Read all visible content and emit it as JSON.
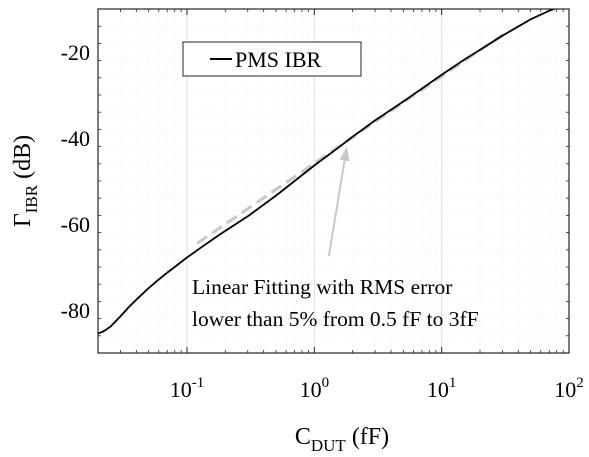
{
  "chart_data": {
    "type": "line",
    "title": "",
    "xlabel": {
      "main": "C",
      "sub": "DUT",
      "unit": " (fF)"
    },
    "ylabel": {
      "main": "Γ",
      "sub": "IBR",
      "unit": " (dB)"
    },
    "xscale": "log",
    "xlim": [
      0.02,
      100
    ],
    "ylim": [
      -90,
      -10
    ],
    "grid": true,
    "legend_position": "top-left",
    "x_ticks": [
      {
        "value": 0.1,
        "base": "10",
        "exp": "-1"
      },
      {
        "value": 1,
        "base": "10",
        "exp": "0"
      },
      {
        "value": 10,
        "base": "10",
        "exp": "1"
      },
      {
        "value": 100,
        "base": "10",
        "exp": "2"
      }
    ],
    "y_ticks": [
      {
        "value": -20,
        "label": "-20"
      },
      {
        "value": -40,
        "label": "-40"
      },
      {
        "value": -60,
        "label": "-60"
      },
      {
        "value": -80,
        "label": "-80"
      }
    ],
    "series": [
      {
        "name": "PMS IBR",
        "color": "#000000",
        "style": "solid",
        "points": [
          [
            0.02,
            -85.5
          ],
          [
            0.022,
            -85.0
          ],
          [
            0.025,
            -83.9
          ],
          [
            0.03,
            -81.5
          ],
          [
            0.035,
            -79.3
          ],
          [
            0.04,
            -77.6
          ],
          [
            0.05,
            -74.9
          ],
          [
            0.06,
            -72.9
          ],
          [
            0.07,
            -71.3
          ],
          [
            0.08,
            -70.0
          ],
          [
            0.1,
            -67.8
          ],
          [
            0.13,
            -65.4
          ],
          [
            0.17,
            -63.0
          ],
          [
            0.2,
            -61.6
          ],
          [
            0.3,
            -58.2
          ],
          [
            0.5,
            -53.4
          ],
          [
            0.7,
            -50.0
          ],
          [
            1.0,
            -46.4
          ],
          [
            1.5,
            -42.5
          ],
          [
            2.0,
            -39.7
          ],
          [
            3.0,
            -35.9
          ],
          [
            5.0,
            -31.5
          ],
          [
            7.0,
            -28.5
          ],
          [
            10.0,
            -25.3
          ],
          [
            15.0,
            -21.8
          ],
          [
            20.0,
            -19.5
          ],
          [
            30.0,
            -16.2
          ],
          [
            50.0,
            -12.4
          ],
          [
            70.0,
            -10.4
          ],
          [
            80.0,
            -9.8
          ]
        ]
      }
    ],
    "fit": {
      "color": "#c8c8c8",
      "style": "dashed",
      "points": [
        [
          0.12,
          -64.5
        ],
        [
          30.0,
          -16.0
        ]
      ]
    },
    "annotation": {
      "lines": [
        "Linear Fitting with RMS error",
        "lower than 5% from 0.5 fF to 3fF"
      ],
      "arrow_color": "#c8c8c8",
      "arrow_target": [
        1.8,
        -42.0
      ],
      "arrow_from": [
        1.3,
        -67.5
      ]
    }
  }
}
